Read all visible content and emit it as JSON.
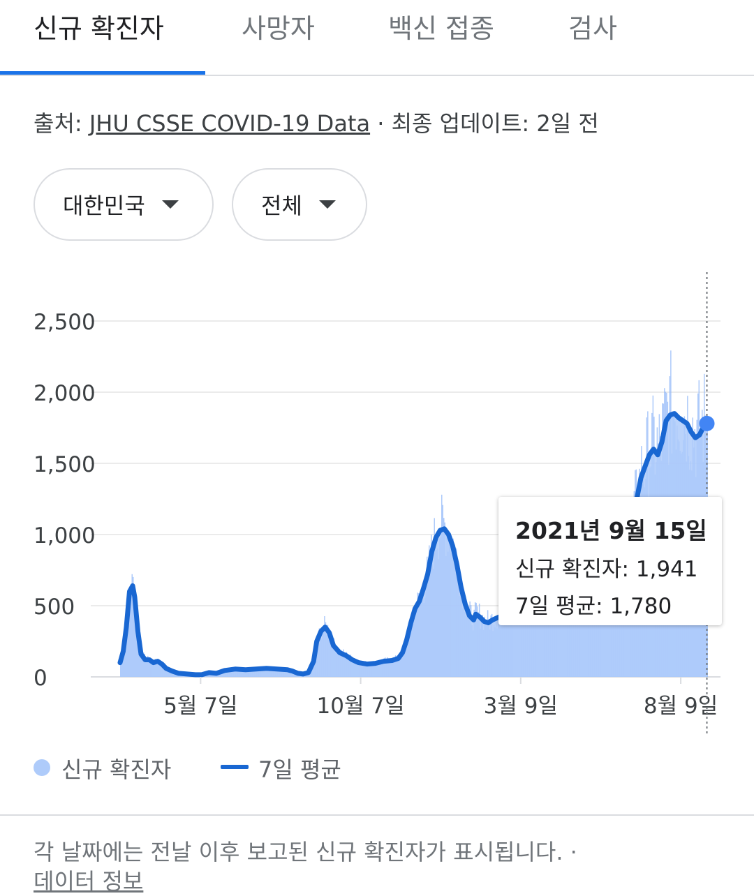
{
  "tabs": [
    {
      "label": "신규 확진자",
      "active": true
    },
    {
      "label": "사망자",
      "active": false
    },
    {
      "label": "백신 접종",
      "active": false
    },
    {
      "label": "검사",
      "active": false
    }
  ],
  "source": {
    "prefix": "출처: ",
    "link_text": "JHU CSSE COVID-19 Data",
    "suffix": " · 최종 업데이트: 2일 전"
  },
  "filters": {
    "region": "대한민국",
    "scope": "전체"
  },
  "tooltip": {
    "date": "2021년 9월 15일",
    "new_cases_label": "신규 확진자: ",
    "new_cases_value": "1,941",
    "avg_label": "7일 평균: ",
    "avg_value": "1,780"
  },
  "legend": {
    "bars": "신규 확진자",
    "line": "7일 평균"
  },
  "footnote": "각 날짜에는 전날 이후 보고된 신규 확진자가 표시됩니다.  ·",
  "footnote_link": "데이터 정보",
  "colors": {
    "accent": "#1a73e8",
    "bar": "#aecbfa",
    "line": "#1967d2",
    "grid": "#ebebeb"
  },
  "chart_data": {
    "type": "bar",
    "ylim": [
      0,
      2500
    ],
    "y_ticks": [
      0,
      500,
      1000,
      1500,
      2000,
      2500
    ],
    "y_tick_labels": [
      "0",
      "500",
      "1,000",
      "1,500",
      "2,000",
      "2,500"
    ],
    "x_tick_labels": [
      "5월 7일",
      "10월 7일",
      "3월 9일",
      "8월 9일"
    ],
    "x_tick_days": [
      77,
      230,
      383,
      536
    ],
    "total_days": 574,
    "series": [
      {
        "name": "신규 확진자",
        "kind": "bars"
      },
      {
        "name": "7일 평균",
        "kind": "line",
        "points": [
          [
            0,
            100
          ],
          [
            3,
            180
          ],
          [
            6,
            350
          ],
          [
            9,
            600
          ],
          [
            12,
            640
          ],
          [
            14,
            560
          ],
          [
            17,
            320
          ],
          [
            20,
            160
          ],
          [
            24,
            120
          ],
          [
            28,
            120
          ],
          [
            32,
            100
          ],
          [
            36,
            110
          ],
          [
            40,
            90
          ],
          [
            44,
            60
          ],
          [
            50,
            40
          ],
          [
            56,
            25
          ],
          [
            64,
            20
          ],
          [
            72,
            15
          ],
          [
            78,
            15
          ],
          [
            85,
            30
          ],
          [
            92,
            25
          ],
          [
            100,
            45
          ],
          [
            110,
            55
          ],
          [
            120,
            50
          ],
          [
            130,
            55
          ],
          [
            140,
            60
          ],
          [
            150,
            55
          ],
          [
            160,
            50
          ],
          [
            165,
            40
          ],
          [
            170,
            25
          ],
          [
            175,
            20
          ],
          [
            180,
            30
          ],
          [
            185,
            110
          ],
          [
            188,
            250
          ],
          [
            192,
            320
          ],
          [
            196,
            350
          ],
          [
            200,
            310
          ],
          [
            204,
            220
          ],
          [
            210,
            170
          ],
          [
            216,
            150
          ],
          [
            222,
            120
          ],
          [
            228,
            100
          ],
          [
            236,
            90
          ],
          [
            244,
            95
          ],
          [
            252,
            110
          ],
          [
            260,
            115
          ],
          [
            266,
            130
          ],
          [
            270,
            170
          ],
          [
            274,
            260
          ],
          [
            278,
            380
          ],
          [
            282,
            480
          ],
          [
            286,
            530
          ],
          [
            290,
            620
          ],
          [
            294,
            720
          ],
          [
            298,
            880
          ],
          [
            302,
            980
          ],
          [
            306,
            1030
          ],
          [
            310,
            1040
          ],
          [
            314,
            1000
          ],
          [
            318,
            920
          ],
          [
            322,
            790
          ],
          [
            326,
            630
          ],
          [
            330,
            510
          ],
          [
            334,
            430
          ],
          [
            338,
            400
          ],
          [
            340,
            440
          ],
          [
            344,
            420
          ],
          [
            348,
            390
          ],
          [
            352,
            380
          ],
          [
            356,
            400
          ],
          [
            362,
            420
          ],
          [
            370,
            440
          ],
          [
            378,
            470
          ],
          [
            386,
            480
          ],
          [
            394,
            500
          ],
          [
            402,
            540
          ],
          [
            410,
            560
          ],
          [
            418,
            580
          ],
          [
            426,
            590
          ],
          [
            434,
            620
          ],
          [
            442,
            640
          ],
          [
            448,
            660
          ],
          [
            454,
            640
          ],
          [
            460,
            680
          ],
          [
            466,
            700
          ],
          [
            472,
            760
          ],
          [
            478,
            800
          ],
          [
            484,
            900
          ],
          [
            490,
            1100
          ],
          [
            494,
            1250
          ],
          [
            498,
            1400
          ],
          [
            502,
            1480
          ],
          [
            506,
            1560
          ],
          [
            510,
            1600
          ],
          [
            514,
            1560
          ],
          [
            518,
            1650
          ],
          [
            522,
            1800
          ],
          [
            526,
            1840
          ],
          [
            530,
            1850
          ],
          [
            534,
            1820
          ],
          [
            538,
            1800
          ],
          [
            542,
            1780
          ],
          [
            546,
            1720
          ],
          [
            550,
            1680
          ],
          [
            554,
            1700
          ],
          [
            558,
            1760
          ],
          [
            561,
            1780
          ]
        ]
      }
    ]
  }
}
